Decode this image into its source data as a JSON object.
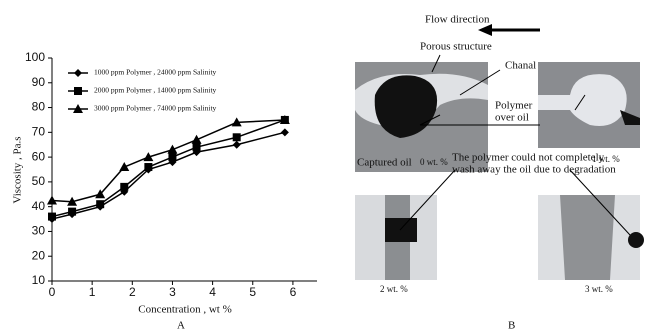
{
  "chart_data": {
    "type": "line",
    "x_label": "Concentration , wt %",
    "y_label": "Viscosity , Pa.s",
    "panel_label": "A",
    "x": [
      0,
      0.5,
      1.2,
      1.8,
      2.4,
      3,
      3.6,
      4.6,
      5.8
    ],
    "series": [
      {
        "name": "1000 ppm Polymer , 24000 ppm Salinity",
        "color": "#000000",
        "marker": "diamond",
        "values": [
          35,
          37,
          40,
          46,
          55,
          58,
          62,
          65,
          70
        ]
      },
      {
        "name": "2000 ppm Polymer , 14000 ppm Salinity",
        "color": "#000000",
        "marker": "square",
        "values": [
          36,
          38,
          41,
          48,
          56,
          60,
          64,
          68,
          75
        ]
      },
      {
        "name": "3000 ppm Polymer , 74000 ppm Salinity",
        "color": "#000000",
        "marker": "triangle",
        "values": [
          42.5,
          42,
          45,
          56,
          60,
          63,
          67,
          74,
          75
        ]
      }
    ],
    "xlim": [
      0,
      6.6
    ],
    "xticks": [
      0,
      1,
      2,
      3,
      4,
      5,
      6
    ],
    "ylim": [
      10,
      100
    ],
    "yticks": [
      10,
      20,
      30,
      40,
      50,
      60,
      70,
      80,
      90,
      100
    ],
    "grid": false,
    "legend": "top-left"
  },
  "panel_b": {
    "panel_label": "B",
    "flow": "Flow direction",
    "porous": "Porous structure",
    "channel": "Chanal",
    "polymer": [
      "Polymer",
      "over oil"
    ],
    "captured": "Captured oil",
    "note": [
      "The polymer could not completely",
      "wash away the oil due to degradation"
    ],
    "captions": [
      "0 wt. %",
      "1 wt. %",
      "2 wt. %",
      "3 wt. %"
    ]
  }
}
